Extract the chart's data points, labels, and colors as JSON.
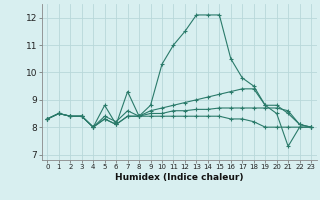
{
  "xlabel": "Humidex (Indice chaleur)",
  "bg_color": "#d8eff0",
  "grid_color": "#b8d8da",
  "line_color": "#2a7a6a",
  "xlim": [
    -0.5,
    23.5
  ],
  "ylim": [
    6.8,
    12.5
  ],
  "xticks": [
    0,
    1,
    2,
    3,
    4,
    5,
    6,
    7,
    8,
    9,
    10,
    11,
    12,
    13,
    14,
    15,
    16,
    17,
    18,
    19,
    20,
    21,
    22,
    23
  ],
  "yticks": [
    7,
    8,
    9,
    10,
    11,
    12
  ],
  "lines": [
    [
      8.3,
      8.5,
      8.4,
      8.4,
      8.0,
      8.8,
      8.1,
      9.3,
      8.4,
      8.8,
      10.3,
      11.0,
      11.5,
      12.1,
      12.1,
      12.1,
      10.5,
      9.8,
      9.5,
      8.8,
      8.5,
      7.3,
      8.0,
      8.0
    ],
    [
      8.3,
      8.5,
      8.4,
      8.4,
      8.0,
      8.4,
      8.2,
      8.6,
      8.4,
      8.6,
      8.7,
      8.8,
      8.9,
      9.0,
      9.1,
      9.2,
      9.3,
      9.4,
      9.4,
      8.8,
      8.8,
      8.5,
      8.1,
      8.0
    ],
    [
      8.3,
      8.5,
      8.4,
      8.4,
      8.0,
      8.3,
      8.1,
      8.4,
      8.4,
      8.5,
      8.5,
      8.6,
      8.6,
      8.65,
      8.65,
      8.7,
      8.7,
      8.7,
      8.7,
      8.7,
      8.7,
      8.6,
      8.1,
      8.0
    ],
    [
      8.3,
      8.5,
      8.4,
      8.4,
      8.0,
      8.3,
      8.1,
      8.4,
      8.4,
      8.4,
      8.4,
      8.4,
      8.4,
      8.4,
      8.4,
      8.4,
      8.3,
      8.3,
      8.2,
      8.0,
      8.0,
      8.0,
      8.0,
      8.0
    ]
  ]
}
